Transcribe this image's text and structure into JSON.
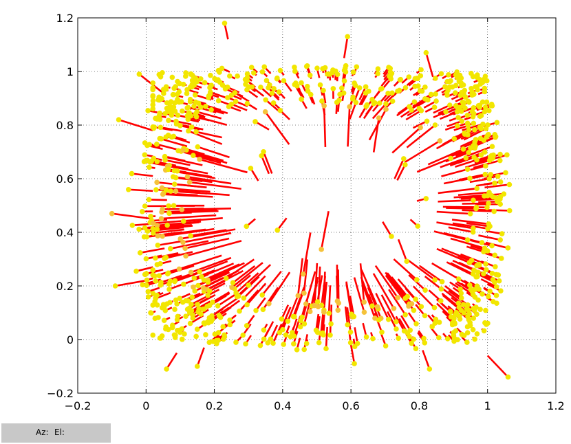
{
  "chart_data": {
    "type": "scatter",
    "title": "",
    "xlabel": "",
    "ylabel": "",
    "xlim": [
      -0.2,
      1.2
    ],
    "ylim": [
      -0.2,
      1.2
    ],
    "grid": true,
    "xticks": [
      "−0.2",
      "0",
      "0.2",
      "0.4",
      "0.6",
      "0.8",
      "1",
      "1.2"
    ],
    "yticks": [
      "−0.2",
      "0",
      "0.2",
      "0.4",
      "0.6",
      "0.8",
      "1",
      "1.2"
    ],
    "xtick_values": [
      -0.2,
      0,
      0.2,
      0.4,
      0.6,
      0.8,
      1.0,
      1.2
    ],
    "ytick_values": [
      -0.2,
      0,
      0.2,
      0.4,
      0.6,
      0.8,
      1.0,
      1.2
    ],
    "description_of_marks": "displacement vectors: red segments from points, colored by distance",
    "sample_points": [
      {
        "x": 0.23,
        "y": 1.18,
        "x2": 0.24,
        "y2": 1.12
      },
      {
        "x": 0.59,
        "y": 1.13,
        "x2": 0.58,
        "y2": 1.05
      },
      {
        "x": -0.1,
        "y": 0.47,
        "x2": 0.02,
        "y2": 0.45
      },
      {
        "x": -0.09,
        "y": 0.2,
        "x2": 0.0,
        "y2": 0.22
      },
      {
        "x": -0.08,
        "y": 0.82,
        "x2": 0.02,
        "y2": 0.78
      },
      {
        "x": -0.02,
        "y": 0.99,
        "x2": 0.05,
        "y2": 0.92
      },
      {
        "x": 0.06,
        "y": -0.11,
        "x2": 0.09,
        "y2": -0.05
      },
      {
        "x": 0.15,
        "y": -0.1,
        "x2": 0.17,
        "y2": -0.03
      },
      {
        "x": 0.61,
        "y": -0.09,
        "x2": 0.6,
        "y2": -0.02
      },
      {
        "x": 0.83,
        "y": -0.11,
        "x2": 0.81,
        "y2": -0.04
      },
      {
        "x": 1.06,
        "y": -0.14,
        "x2": 1.0,
        "y2": -0.06
      },
      {
        "x": 0.82,
        "y": 1.07,
        "x2": 0.84,
        "y2": 0.98
      }
    ],
    "colors": {
      "vector": "#ff0000",
      "near": "#f2e600",
      "mid": "#f5c23a",
      "far1": "#88bb6e",
      "far2": "#1fa8c7",
      "farthest": "#1f48d9",
      "grid": "#000000"
    }
  },
  "status": {
    "az_label": "Az:",
    "el_label": "El:"
  }
}
